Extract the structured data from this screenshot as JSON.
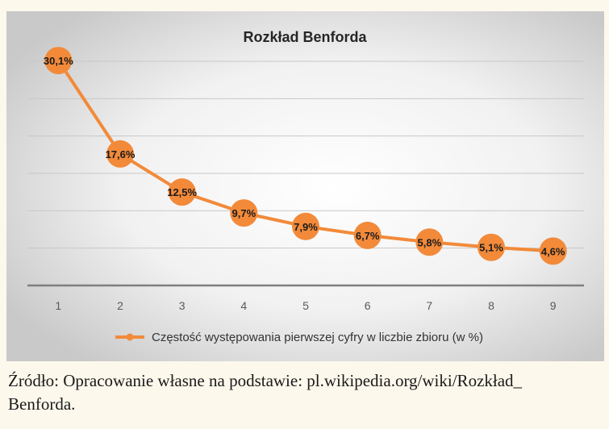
{
  "chart_data": {
    "type": "line",
    "title": "Rozkład Benforda",
    "categories": [
      "1",
      "2",
      "3",
      "4",
      "5",
      "6",
      "7",
      "8",
      "9"
    ],
    "series": [
      {
        "name": "Częstość występowania pierwszej cyfry w liczbie zbioru (w %)",
        "values": [
          30.1,
          17.6,
          12.5,
          9.7,
          7.9,
          6.7,
          5.8,
          5.1,
          4.6
        ],
        "labels": [
          "30,1%",
          "17,6%",
          "12,5%",
          "9,7%",
          "7,9%",
          "6,7%",
          "5,8%",
          "5,1%",
          "4,6%"
        ],
        "color": "#f28a3a"
      }
    ],
    "xlabel": "",
    "ylabel": "",
    "ylim": [
      0,
      30
    ],
    "grid": true,
    "legend_position": "bottom"
  },
  "caption": {
    "line1": "Źródło: Opracowanie własne na podstawie: pl.wikipedia.org/wiki/Rozkład_",
    "line2": "Benforda."
  },
  "colors": {
    "series": "#f28a3a",
    "grid": "#c8c8c8",
    "axis": "#7f7f7f",
    "title": "#262626"
  }
}
